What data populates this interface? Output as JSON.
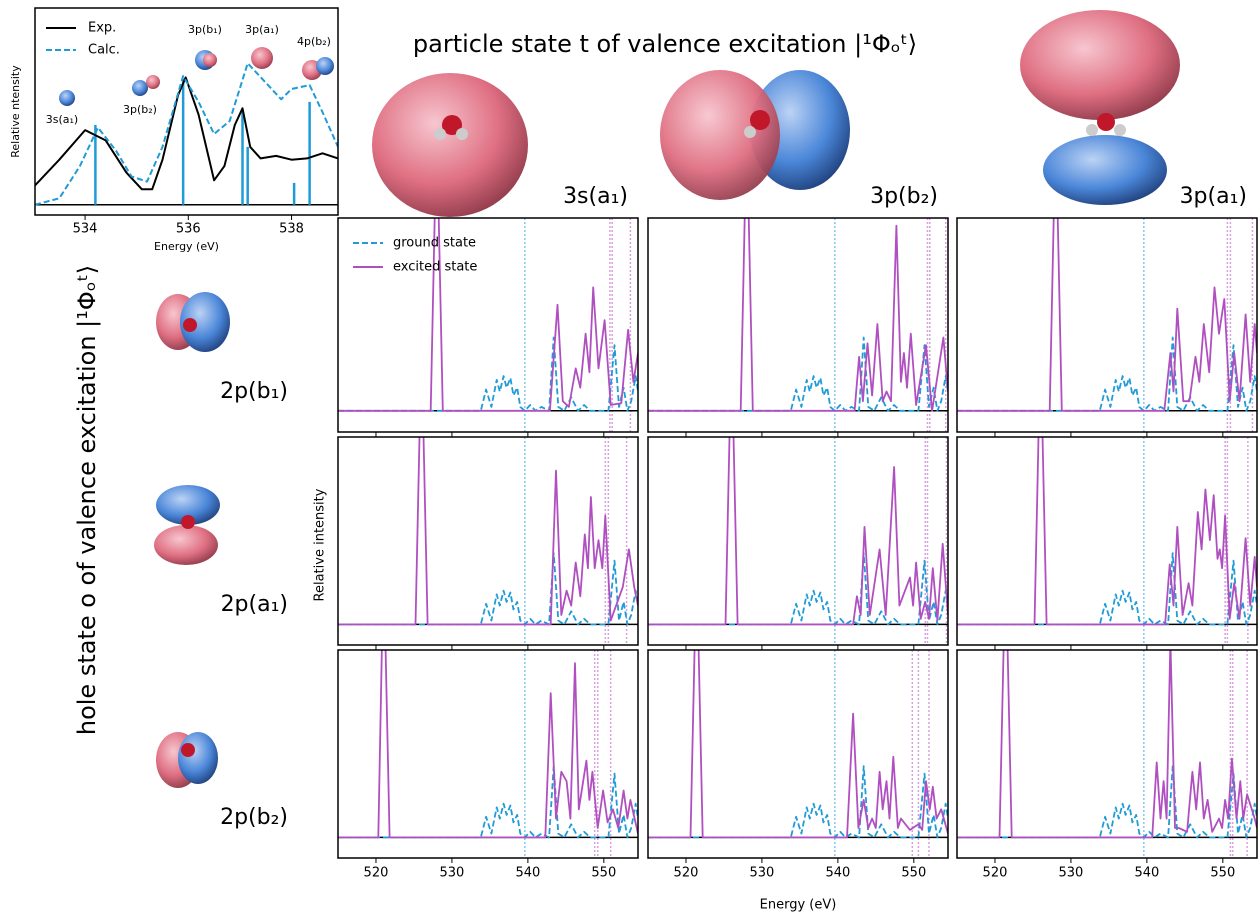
{
  "chart_data": [
    {
      "type": "line",
      "x_label": "Energy (eV)",
      "y_label": "Relative ntensity",
      "xlim": [
        533.03,
        538.9
      ],
      "ylim": [
        -0.08,
        1.53
      ],
      "xticks": [
        534,
        536,
        538
      ],
      "legend": "upper left",
      "series": [
        {
          "name": "Exp.",
          "color": "#000000",
          "x": [
            533.03,
            533.5,
            534.0,
            534.4,
            534.8,
            535.1,
            535.3,
            535.5,
            535.8,
            535.95,
            536.2,
            536.5,
            536.7,
            536.9,
            537.05,
            537.2,
            537.4,
            537.7,
            538.0,
            538.3,
            538.6,
            538.9
          ],
          "values": [
            0.15,
            0.35,
            0.58,
            0.5,
            0.25,
            0.12,
            0.12,
            0.35,
            0.85,
            0.99,
            0.7,
            0.19,
            0.3,
            0.62,
            0.75,
            0.45,
            0.36,
            0.38,
            0.35,
            0.36,
            0.4,
            0.36
          ]
        },
        {
          "name": "Calc.",
          "color": "#1f9bd7",
          "dash": true,
          "x": [
            533.03,
            533.5,
            533.9,
            534.25,
            534.6,
            534.9,
            535.2,
            535.5,
            535.9,
            536.2,
            536.5,
            536.8,
            537.15,
            537.5,
            537.8,
            538.0,
            538.35,
            538.6,
            538.9
          ],
          "values": [
            0.0,
            0.05,
            0.3,
            0.6,
            0.42,
            0.22,
            0.18,
            0.45,
            1.0,
            0.8,
            0.55,
            0.65,
            1.1,
            0.95,
            0.82,
            0.9,
            0.93,
            0.72,
            0.45
          ]
        }
      ],
      "sticks": {
        "color": "#1f9bd7",
        "x": [
          534.2,
          535.9,
          537.05,
          537.15,
          538.05,
          538.35
        ],
        "values": [
          0.62,
          0.98,
          0.72,
          0.45,
          0.17,
          0.8
        ]
      },
      "annotations": [
        "3s(a₁)",
        "3p(b₂)",
        "3p(b₁)",
        "3p(a₁)",
        "4p(b₂)"
      ]
    },
    {
      "type": "spectra-grid",
      "title": "particle state t of valence excitation |¹Φₒᵗ⟩",
      "row_title": "hole state o of valence excitation |¹Φₒᵗ⟩",
      "x_label": "Energy (eV)",
      "y_label": "Relative intensity",
      "xlim": [
        515,
        554.5
      ],
      "ylim": [
        -0.11,
        1.0
      ],
      "xticks": [
        520,
        530,
        540,
        550
      ],
      "legend": "upper left",
      "columns": [
        "3s(a₁)",
        "3p(b₂)",
        "3p(a₁)"
      ],
      "rows": [
        "2p(b₁)",
        "2p(a₁)",
        "2p(b₂)"
      ],
      "ground": {
        "name": "ground state",
        "color": "#1f9bd7",
        "x": [
          515,
          533.8,
          534.5,
          535.2,
          535.9,
          536.3,
          536.8,
          537.2,
          537.7,
          538.1,
          538.6,
          539.0,
          539.6,
          540.3,
          541.0,
          541.8,
          542.8,
          543.4,
          544.0,
          544.8,
          545.7,
          546.6,
          547.4,
          548.2,
          550.6,
          551.4,
          552.0,
          552.6,
          553.1,
          553.6,
          554.2,
          554.5
        ],
        "values": [
          0,
          0,
          0.11,
          0.02,
          0.16,
          0.1,
          0.18,
          0.12,
          0.17,
          0.08,
          0.12,
          0.02,
          0,
          0.03,
          0,
          0.02,
          0,
          0.38,
          0.02,
          0,
          0.07,
          0,
          0.03,
          0,
          0,
          0.34,
          0.02,
          0.12,
          0,
          0.05,
          0.18,
          0.1
        ]
      },
      "ground_marker": {
        "color": "#7fc8f0",
        "x": 539.6
      },
      "excited": {
        "name": "excited state",
        "color": "#b050c0",
        "marker_color": "#d9a0e0"
      },
      "panels": [
        {
          "x": [
            515,
            527.2,
            528,
            528.8,
            542.9,
            543.9,
            544.6,
            545.4,
            546.3,
            546.9,
            547.6,
            548.1,
            548.6,
            549.3,
            550.1,
            550.9,
            552.3,
            553.2,
            553.9,
            554.5
          ],
          "values": [
            0,
            0,
            1.5,
            0,
            0,
            0.55,
            0.05,
            0.02,
            0.22,
            0.12,
            0.4,
            0.2,
            0.64,
            0.22,
            0.47,
            0.03,
            0.04,
            0.42,
            0.15,
            0.3
          ],
          "markers": [
            550.8,
            551.1,
            553.5
          ]
        },
        {
          "x": [
            515,
            527.2,
            528,
            528.8,
            542.2,
            542.8,
            543.3,
            543.9,
            544.5,
            545.2,
            545.9,
            546.4,
            547,
            547.7,
            548.3,
            548.7,
            549.1,
            549.6,
            550.3,
            551.6,
            552.4,
            553.9,
            554.5
          ],
          "values": [
            0,
            0,
            1.5,
            0,
            0,
            0.28,
            0.05,
            0.35,
            0.08,
            0.45,
            0.05,
            0.1,
            0.05,
            0.96,
            0.15,
            0.3,
            0.12,
            0.4,
            0.03,
            0.34,
            0,
            0.38,
            0.1
          ],
          "markers": [
            551.8,
            552.1,
            554.2
          ]
        },
        {
          "x": [
            515,
            527.2,
            528,
            528.8,
            542.3,
            543.1,
            543.5,
            544,
            544.8,
            545.6,
            546.4,
            546.9,
            547.5,
            548.2,
            548.9,
            549.5,
            550.2,
            550.9,
            551.5,
            552.2,
            553,
            553.6,
            554.2,
            554.5
          ],
          "values": [
            0,
            0,
            1.5,
            0,
            0,
            0.3,
            0.1,
            0.53,
            0.05,
            0.05,
            0.28,
            0.15,
            0.45,
            0.2,
            0.64,
            0.4,
            0.58,
            0.05,
            0.3,
            0.05,
            0.5,
            0.15,
            0.45,
            0.3
          ],
          "markers": [
            550.6,
            551,
            553.9
          ]
        },
        {
          "x": [
            515,
            525.2,
            526,
            526.8,
            543,
            543.7,
            544.4,
            545.1,
            545.7,
            546.3,
            546.9,
            547.5,
            547.9,
            548.3,
            548.8,
            549.3,
            549.8,
            550.2,
            550.9,
            552.5,
            553.3,
            554,
            554.5
          ],
          "values": [
            0,
            0,
            1.5,
            0,
            0,
            0.82,
            0.05,
            0.18,
            0.1,
            0.33,
            0.15,
            0.48,
            0.3,
            0.68,
            0.3,
            0.45,
            0.3,
            0.58,
            0.02,
            0.2,
            0.4,
            0.2,
            0.1
          ],
          "markers": [
            550.2,
            550.6,
            553
          ]
        },
        {
          "x": [
            515,
            525.2,
            526,
            526.8,
            542,
            542.5,
            543,
            543.5,
            544.2,
            545.5,
            546.3,
            547.4,
            548.1,
            549.5,
            549.9,
            550.3,
            550.9,
            551.5,
            552,
            552.5,
            553.1,
            553.8,
            554.5
          ],
          "values": [
            0,
            0,
            1.5,
            0,
            0,
            0.15,
            0.05,
            0.52,
            0.05,
            0.4,
            0.05,
            0.84,
            0.1,
            0.25,
            0.1,
            0.33,
            0.03,
            0.12,
            0.03,
            0.3,
            0.02,
            0.43,
            0.05
          ],
          "markers": [
            551.5,
            551.8,
            554.3
          ]
        },
        {
          "x": [
            515,
            525.2,
            526,
            526.8,
            542.4,
            543,
            543.5,
            544,
            544.7,
            545.5,
            546,
            546.7,
            547.2,
            547.7,
            548.3,
            548.8,
            549.3,
            549.6,
            549.9,
            550.3,
            550.9,
            551.5,
            552.2,
            553,
            553.6,
            554.2,
            554.5
          ],
          "values": [
            0,
            0,
            1.5,
            0,
            0,
            0.32,
            0.1,
            0.52,
            0.05,
            0.22,
            0.1,
            0.6,
            0.4,
            0.72,
            0.45,
            0.69,
            0.35,
            0.4,
            0.3,
            0.58,
            0.03,
            0.22,
            0.03,
            0.46,
            0.1,
            0.36,
            0.2
          ],
          "markers": [
            550.3,
            550.6,
            553.3
          ]
        },
        {
          "x": [
            515,
            520.3,
            521,
            521.8,
            542.3,
            543,
            543.7,
            544.4,
            545.1,
            545.6,
            546.2,
            546.7,
            547.7,
            548.1,
            548.5,
            549.2,
            549.9,
            550.5,
            551.2,
            551.9,
            552.6,
            553.1,
            553.5,
            554.5
          ],
          "values": [
            0,
            0,
            1.5,
            0,
            0,
            0.77,
            0.1,
            0.35,
            0.3,
            0.1,
            0.93,
            0.15,
            0.41,
            0.2,
            0.35,
            0.05,
            0.25,
            0.08,
            0.15,
            0.05,
            0.25,
            0.1,
            0.2,
            0.02
          ],
          "markers": [
            548.8,
            549.2,
            550.9
          ]
        },
        {
          "x": [
            515,
            520.6,
            521.4,
            522.2,
            541.2,
            542,
            542.7,
            543.4,
            544,
            544.5,
            545,
            545.5,
            545.9,
            546.4,
            546.8,
            547.3,
            547.9,
            548.3,
            549.5,
            550.6,
            551.1,
            551.6,
            552.1,
            552.5,
            553,
            553.6,
            554.5
          ],
          "values": [
            0,
            0,
            1.5,
            0,
            0,
            0.66,
            0.05,
            0.2,
            0.05,
            0.1,
            0.05,
            0.35,
            0.15,
            0.3,
            0.1,
            0.43,
            0.05,
            0.1,
            0.04,
            0.07,
            0.04,
            0.3,
            0.15,
            0.27,
            0.1,
            0.15,
            0.02
          ],
          "markers": [
            549.8,
            550.6,
            552
          ]
        },
        {
          "x": [
            515,
            520.6,
            521.4,
            522.2,
            540.7,
            541.3,
            541.8,
            542.2,
            542.6,
            543.1,
            543.7,
            544.2,
            545.3,
            546,
            546.5,
            547,
            547.5,
            548,
            548.6,
            549.5,
            549.9,
            550.3,
            550.7,
            551.2,
            551.8,
            552.3,
            552.7,
            553.2,
            554.2,
            554.5
          ],
          "values": [
            0,
            0,
            1.5,
            0,
            0,
            0.4,
            0.1,
            0.3,
            0.1,
            1.05,
            0.05,
            0.05,
            0.03,
            0.35,
            0.15,
            0.4,
            0.1,
            0.2,
            0.03,
            0.1,
            0.05,
            0.2,
            0.1,
            0.42,
            0.1,
            0.3,
            0.1,
            0.23,
            0.1,
            0.05
          ],
          "markers": [
            551,
            551.3,
            553.2
          ]
        }
      ]
    }
  ]
}
